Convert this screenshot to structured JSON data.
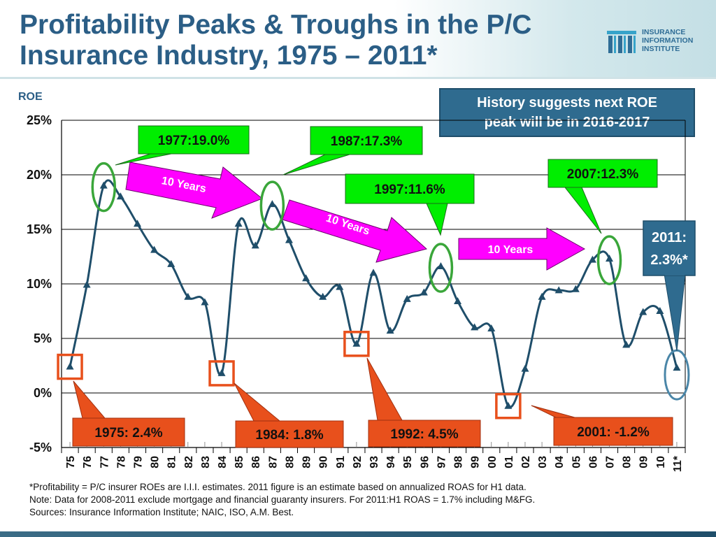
{
  "title": "Profitability Peaks & Troughs in the P/C Insurance Industry, 1975 – 2011*",
  "logo": {
    "line1": "INSURANCE",
    "line2": "INFORMATION",
    "line3": "INSTITUTE"
  },
  "roe_label": "ROE",
  "history_box": {
    "line1": "History suggests next ROE",
    "line2": "peak will be in 2016-2017"
  },
  "colors": {
    "title": "#2b5e86",
    "line": "#1f4e6a",
    "peak_callout": "#00ee00",
    "peak_ellipse": "#3aa63a",
    "trough_box": "#e8501c",
    "arrow": "#ff00ff",
    "note_box": "#2f6b8f"
  },
  "chart_data": {
    "type": "line",
    "ylim": [
      -5,
      25
    ],
    "yticks": [
      "25%",
      "20%",
      "15%",
      "10%",
      "5%",
      "0%",
      "-5%"
    ],
    "grid": "horizontal",
    "categories": [
      "75",
      "76",
      "77",
      "78",
      "79",
      "80",
      "81",
      "82",
      "83",
      "84",
      "85",
      "86",
      "87",
      "88",
      "89",
      "90",
      "91",
      "92",
      "93",
      "94",
      "95",
      "96",
      "97",
      "98",
      "99",
      "00",
      "01",
      "02",
      "03",
      "04",
      "05",
      "06",
      "07",
      "08",
      "09",
      "10",
      "11*"
    ],
    "series": [
      {
        "values": [
          2.4,
          9.9,
          19.0,
          18.0,
          15.5,
          13.1,
          11.8,
          8.8,
          8.3,
          1.8,
          15.5,
          13.5,
          17.3,
          14.0,
          10.5,
          8.8,
          9.7,
          4.5,
          11.0,
          5.7,
          8.6,
          9.2,
          11.6,
          8.4,
          6.0,
          5.9,
          -1.2,
          2.2,
          8.8,
          9.4,
          9.5,
          12.2,
          12.3,
          4.4,
          7.4,
          7.5,
          2.3
        ]
      }
    ],
    "peaks": [
      {
        "label": "1977:19.0%",
        "year_index": 2
      },
      {
        "label": "1987:17.3%",
        "year_index": 12
      },
      {
        "label": "1997:11.6%",
        "year_index": 22
      },
      {
        "label": "2007:12.3%",
        "year_index": 32
      }
    ],
    "troughs": [
      {
        "label": "1975: 2.4%",
        "year_index": 0
      },
      {
        "label": "1984: 1.8%",
        "year_index": 9
      },
      {
        "label": "1992: 4.5%",
        "year_index": 17
      },
      {
        "label": "2001: -1.2%",
        "year_index": 26
      }
    ],
    "arrows": [
      "10 Years",
      "10 Years",
      "10 Years"
    ],
    "latest": {
      "line1": "2011:",
      "line2": "2.3%*"
    }
  },
  "footnotes": [
    "*Profitability =  P/C insurer ROEs are I.I.I. estimates. 2011 figure is an estimate based on annualized ROAS for H1 data.",
    "Note:  Data for 2008-2011 exclude mortgage and financial guaranty insurers.  For 2011:H1 ROAS = 1.7% including M&FG.",
    "Sources:  Insurance Information Institute; NAIC, ISO, A.M. Best."
  ]
}
